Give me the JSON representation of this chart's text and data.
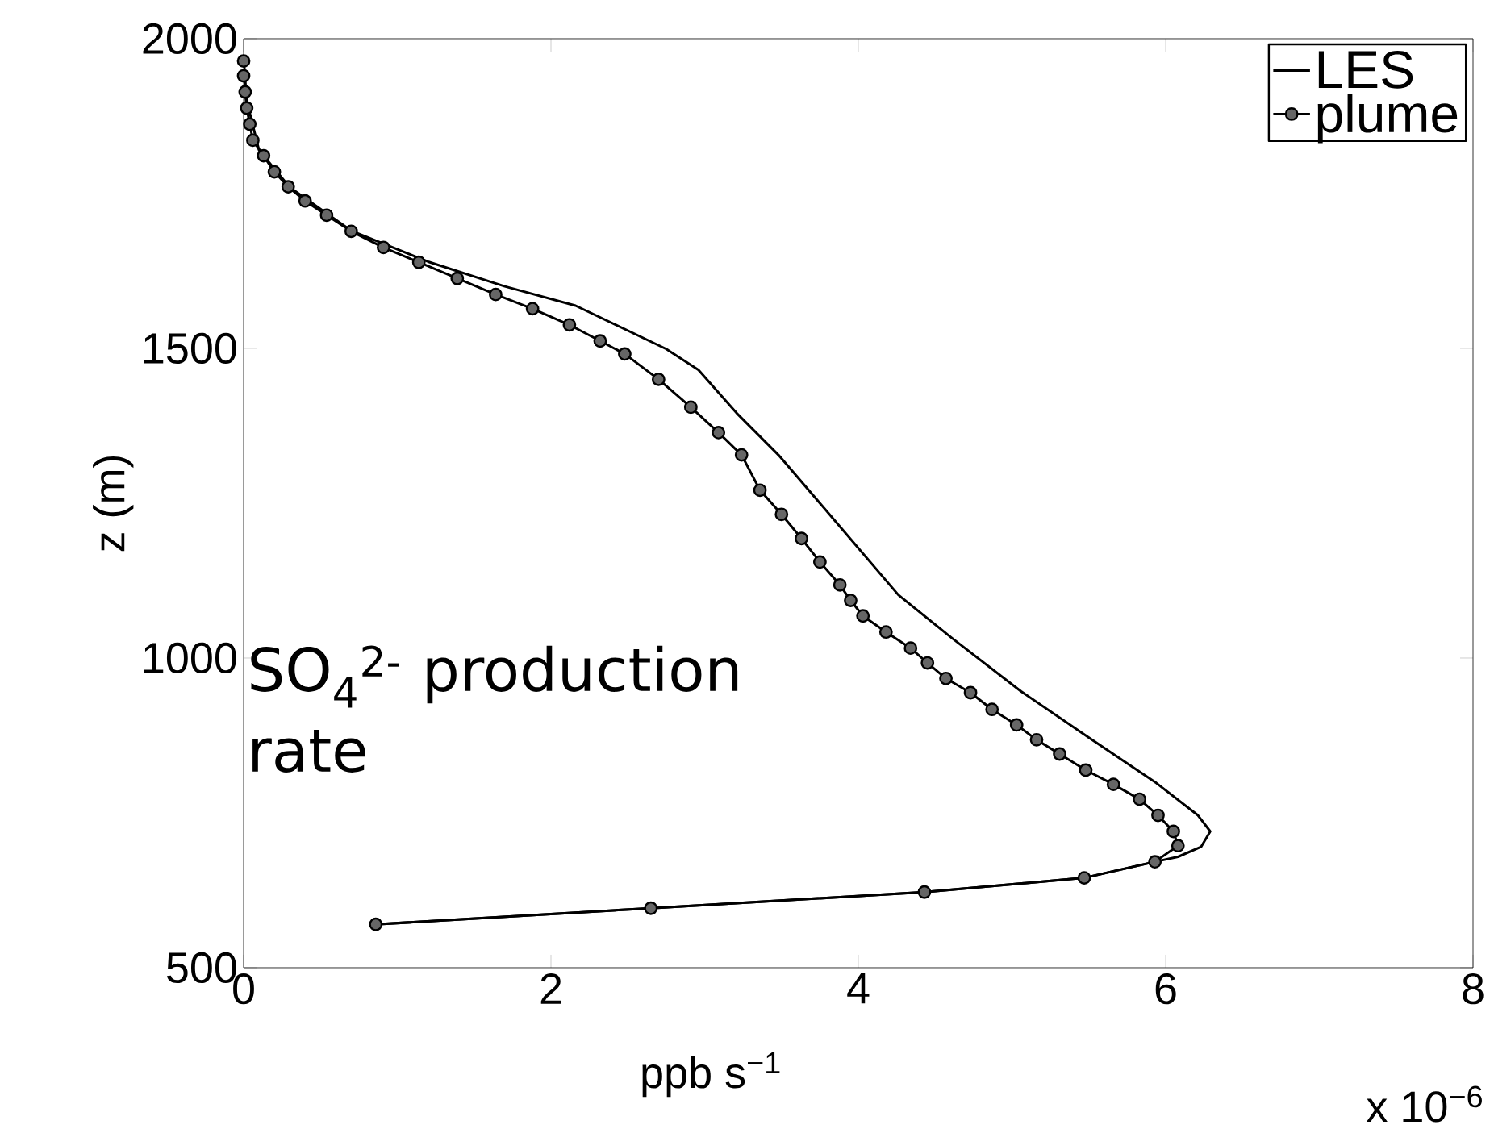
{
  "chart_data": {
    "type": "line",
    "xlabel": "ppb s$^{−1}$",
    "ylabel": "z (m)",
    "annotations": [
      "SO$_{4}$$^{2-}$ production rate",
      "x 10$^{−6}$"
    ],
    "xlim": [
      0,
      8
    ],
    "xticks": [
      0,
      2,
      4,
      6,
      8
    ],
    "ylim": [
      500,
      2000
    ],
    "yticks": [
      500,
      1000,
      1500,
      2000
    ],
    "legend": "top right",
    "grid": false,
    "series": [
      {
        "name": "LES",
        "color": "#000000",
        "marker": "none",
        "x": [
          0.86,
          2.65,
          4.43,
          5.47,
          5.93,
          6.08,
          6.23,
          6.29,
          6.21,
          5.94,
          5.52,
          5.06,
          4.61,
          4.26,
          3.84,
          3.48,
          3.21,
          2.96,
          2.75,
          2.16,
          1.7,
          1.2,
          0.7,
          0.3,
          0.1,
          0.02,
          0
        ],
        "values": [
          570,
          596,
          622,
          645,
          671,
          679,
          695,
          720,
          746,
          798,
          868,
          946,
          1032,
          1102,
          1224,
          1328,
          1395,
          1465,
          1499,
          1569,
          1600,
          1640,
          1690,
          1760,
          1820,
          1900,
          1970
        ]
      },
      {
        "name": "plume",
        "color": "#000000",
        "marker": "circle",
        "x": [
          0.86,
          2.65,
          4.43,
          5.47,
          5.93,
          6.08,
          6.05,
          5.95,
          5.83,
          5.66,
          5.48,
          5.31,
          5.16,
          5.03,
          4.87,
          4.73,
          4.57,
          4.45,
          4.34,
          4.18,
          4.03,
          3.95,
          3.88,
          3.75,
          3.63,
          3.5,
          3.36,
          3.24,
          3.09,
          2.91,
          2.7,
          2.48,
          2.32,
          2.12,
          1.88,
          1.64,
          1.39,
          1.14,
          0.91,
          0.7,
          0.54,
          0.4,
          0.29,
          0.2,
          0.13,
          0.06,
          0.04,
          0.02,
          0.01,
          0,
          0
        ],
        "values": [
          570,
          596,
          622,
          645,
          671,
          697,
          720,
          746,
          772,
          796,
          819,
          845,
          868,
          892,
          917,
          944,
          967,
          992,
          1016,
          1042,
          1068,
          1093,
          1118,
          1155,
          1193,
          1232,
          1271,
          1328,
          1364,
          1405,
          1450,
          1491,
          1512,
          1538,
          1564,
          1587,
          1613,
          1639,
          1663,
          1689,
          1715,
          1738,
          1761,
          1785,
          1811,
          1836,
          1862,
          1888,
          1914,
          1940,
          1964
        ]
      }
    ]
  }
}
